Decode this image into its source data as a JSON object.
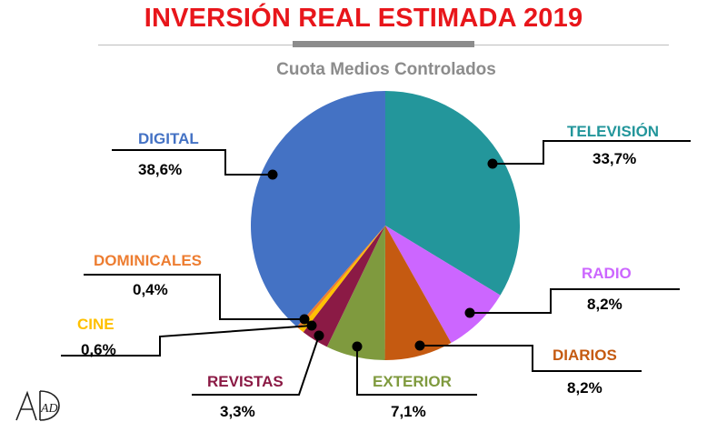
{
  "header": {
    "title": "INVERSIÓN REAL ESTIMADA 2019",
    "subtitle": "Cuota Medios Controlados"
  },
  "logo": {
    "text": "AD",
    "icon": "ad-logo-icon"
  },
  "chart_data": {
    "type": "pie",
    "title": "INVERSIÓN REAL ESTIMADA 2019",
    "subtitle": "Cuota Medios Controlados",
    "start_angle_deg": 0,
    "direction": "clockwise",
    "slices": [
      {
        "label": "TELEVISIÓN",
        "value": 33.7,
        "display": "33,7%",
        "color": "#23969b",
        "label_color": "#23969b"
      },
      {
        "label": "RADIO",
        "value": 8.2,
        "display": "8,2%",
        "color": "#cc66ff",
        "label_color": "#cc66ff"
      },
      {
        "label": "DIARIOS",
        "value": 8.2,
        "display": "8,2%",
        "color": "#c55a11",
        "label_color": "#c55a11"
      },
      {
        "label": "EXTERIOR",
        "value": 7.1,
        "display": "7,1%",
        "color": "#7f9a3e",
        "label_color": "#7f9a3e"
      },
      {
        "label": "REVISTAS",
        "value": 3.3,
        "display": "3,3%",
        "color": "#8b1a45",
        "label_color": "#8b1a45"
      },
      {
        "label": "CINE",
        "value": 0.6,
        "display": "0,6%",
        "color": "#ffc000",
        "label_color": "#ffc000"
      },
      {
        "label": "DOMINICALES",
        "value": 0.4,
        "display": "0,4%",
        "color": "#ed7d31",
        "label_color": "#ed7d31"
      },
      {
        "label": "DIGITAL",
        "value": 38.6,
        "display": "38,6%",
        "color": "#4472c4",
        "label_color": "#4472c4"
      }
    ]
  }
}
